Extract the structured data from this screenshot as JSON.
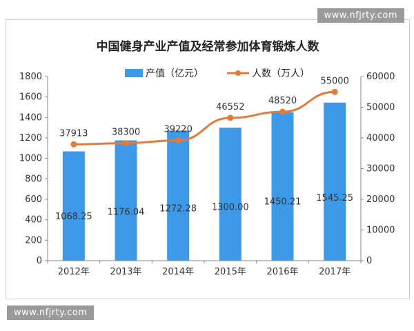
{
  "watermark_top": "www.nfjrty.com",
  "watermark_bottom": "www.nfjrty.com",
  "chart_data": {
    "type": "bar+line",
    "title": "中国健身产业产值及经常参加体育锻炼人数",
    "categories": [
      "2012年",
      "2013年",
      "2014年",
      "2015年",
      "2016年",
      "2017年"
    ],
    "series": [
      {
        "name": "产值（亿元）",
        "type": "bar",
        "axis": "left",
        "values": [
          1068.25,
          1176.04,
          1272.28,
          1300.0,
          1450.21,
          1545.25
        ],
        "labels": [
          "1068.25",
          "1176.04",
          "1272.28",
          "1300.00",
          "1450.21",
          "1545.25"
        ],
        "color": "#3d9ae8"
      },
      {
        "name": "人数（万人）",
        "type": "line",
        "axis": "right",
        "values": [
          37913,
          38300,
          39220,
          46552,
          48520,
          55000
        ],
        "labels": [
          "37913",
          "38300",
          "39220",
          "46552",
          "48520",
          "55000"
        ],
        "color": "#e07b39"
      }
    ],
    "y_left": {
      "min": 0,
      "max": 1800,
      "step": 200,
      "ticks": [
        "0",
        "200",
        "400",
        "600",
        "800",
        "1000",
        "1200",
        "1400",
        "1600",
        "1800"
      ]
    },
    "y_right": {
      "min": 0,
      "max": 60000,
      "step": 10000,
      "ticks": [
        "0",
        "10000",
        "20000",
        "30000",
        "40000",
        "50000",
        "60000"
      ]
    },
    "legend_position": "top-center",
    "grid": false
  }
}
